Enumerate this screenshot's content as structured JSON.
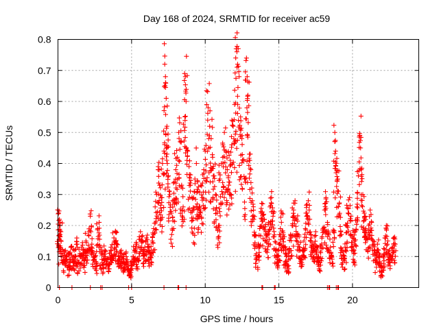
{
  "chart_data": {
    "type": "scatter",
    "title": "Day 168 of 2024, SRMTID for receiver ac59",
    "xlabel": "GPS time / hours",
    "ylabel": "SRMTID / TECUs",
    "xlim": [
      0,
      24.5
    ],
    "ylim": [
      0,
      0.8
    ],
    "xticks": [
      0,
      5,
      10,
      15,
      20
    ],
    "xtick_labels": [
      "0",
      "5",
      "10",
      "15",
      "20"
    ],
    "yticks": [
      0,
      0.1,
      0.2,
      0.3,
      0.4,
      0.5,
      0.6,
      0.7,
      0.8
    ],
    "ytick_labels": [
      "0",
      "0.1",
      "0.2",
      "0.3",
      "0.4",
      "0.5",
      "0.6",
      "0.7",
      "0.8"
    ],
    "grid": true,
    "marker": "+",
    "color": "#ff0000",
    "series": [
      {
        "name": "SRMTID",
        "points": [
          [
            0.05,
            0.24
          ],
          [
            0.1,
            0.22
          ],
          [
            0.15,
            0.2
          ],
          [
            0.2,
            0.18
          ],
          [
            0.1,
            0.13
          ],
          [
            0.3,
            0.11
          ],
          [
            0.4,
            0.09
          ],
          [
            0.5,
            0.12
          ],
          [
            0.6,
            0.1
          ],
          [
            0.7,
            0.07
          ],
          [
            0.8,
            0.11
          ],
          [
            0.9,
            0.13
          ],
          [
            1.0,
            0.09
          ],
          [
            1.1,
            0.12
          ],
          [
            1.2,
            0.1
          ],
          [
            1.3,
            0.14
          ],
          [
            1.4,
            0.08
          ],
          [
            1.5,
            0.11
          ],
          [
            1.6,
            0.13
          ],
          [
            1.7,
            0.12
          ],
          [
            1.8,
            0.09
          ],
          [
            1.9,
            0.15
          ],
          [
            2.0,
            0.12
          ],
          [
            2.1,
            0.18
          ],
          [
            2.2,
            0.23
          ],
          [
            2.3,
            0.14
          ],
          [
            2.4,
            0.11
          ],
          [
            2.5,
            0.1
          ],
          [
            2.6,
            0.08
          ],
          [
            2.7,
            0.19
          ],
          [
            2.8,
            0.21
          ],
          [
            2.9,
            0.13
          ],
          [
            3.0,
            0.08
          ],
          [
            3.1,
            0.1
          ],
          [
            3.2,
            0.12
          ],
          [
            3.3,
            0.09
          ],
          [
            3.4,
            0.07
          ],
          [
            3.5,
            0.11
          ],
          [
            3.6,
            0.13
          ],
          [
            3.7,
            0.1
          ],
          [
            3.8,
            0.16
          ],
          [
            3.9,
            0.18
          ],
          [
            4.0,
            0.14
          ],
          [
            4.1,
            0.1
          ],
          [
            4.2,
            0.09
          ],
          [
            4.3,
            0.12
          ],
          [
            4.4,
            0.1
          ],
          [
            4.5,
            0.08
          ],
          [
            4.6,
            0.11
          ],
          [
            4.7,
            0.09
          ],
          [
            4.8,
            0.06
          ],
          [
            4.9,
            0.04
          ],
          [
            5.0,
            0.07
          ],
          [
            5.1,
            0.1
          ],
          [
            5.2,
            0.12
          ],
          [
            5.3,
            0.14
          ],
          [
            5.4,
            0.09
          ],
          [
            5.5,
            0.13
          ],
          [
            5.6,
            0.18
          ],
          [
            5.7,
            0.15
          ],
          [
            5.8,
            0.11
          ],
          [
            5.9,
            0.13
          ],
          [
            6.0,
            0.16
          ],
          [
            6.1,
            0.14
          ],
          [
            6.2,
            0.12
          ],
          [
            6.3,
            0.1
          ],
          [
            6.4,
            0.15
          ],
          [
            6.5,
            0.19
          ],
          [
            6.6,
            0.26
          ],
          [
            6.7,
            0.3
          ],
          [
            6.8,
            0.38
          ],
          [
            6.9,
            0.33
          ],
          [
            7.0,
            0.29
          ],
          [
            7.1,
            0.4
          ],
          [
            7.2,
            0.44
          ],
          [
            7.25,
            0.72
          ],
          [
            7.3,
            0.68
          ],
          [
            7.35,
            0.61
          ],
          [
            7.4,
            0.52
          ],
          [
            7.5,
            0.36
          ],
          [
            7.6,
            0.3
          ],
          [
            7.7,
            0.24
          ],
          [
            7.8,
            0.28
          ],
          [
            7.9,
            0.34
          ],
          [
            8.0,
            0.38
          ],
          [
            8.1,
            0.42
          ],
          [
            8.2,
            0.5
          ],
          [
            8.3,
            0.47
          ],
          [
            8.4,
            0.33
          ],
          [
            8.5,
            0.26
          ],
          [
            8.6,
            0.69
          ],
          [
            8.65,
            0.68
          ],
          [
            8.7,
            0.6
          ],
          [
            8.8,
            0.44
          ],
          [
            8.9,
            0.39
          ],
          [
            9.0,
            0.33
          ],
          [
            9.1,
            0.29
          ],
          [
            9.2,
            0.25
          ],
          [
            9.3,
            0.35
          ],
          [
            9.4,
            0.4
          ],
          [
            9.5,
            0.31
          ],
          [
            9.6,
            0.26
          ],
          [
            9.7,
            0.33
          ],
          [
            9.8,
            0.29
          ],
          [
            9.9,
            0.38
          ],
          [
            10.0,
            0.44
          ],
          [
            10.1,
            0.59
          ],
          [
            10.2,
            0.58
          ],
          [
            10.3,
            0.52
          ],
          [
            10.4,
            0.48
          ],
          [
            10.5,
            0.42
          ],
          [
            10.6,
            0.36
          ],
          [
            10.7,
            0.3
          ],
          [
            10.8,
            0.24
          ],
          [
            10.9,
            0.2
          ],
          [
            11.0,
            0.35
          ],
          [
            11.1,
            0.4
          ],
          [
            11.2,
            0.46
          ],
          [
            11.3,
            0.5
          ],
          [
            11.4,
            0.44
          ],
          [
            11.5,
            0.38
          ],
          [
            11.6,
            0.33
          ],
          [
            11.7,
            0.41
          ],
          [
            11.8,
            0.46
          ],
          [
            11.9,
            0.52
          ],
          [
            12.0,
            0.59
          ],
          [
            12.1,
            0.77
          ],
          [
            12.15,
            0.76
          ],
          [
            12.2,
            0.72
          ],
          [
            12.3,
            0.68
          ],
          [
            12.4,
            0.55
          ],
          [
            12.5,
            0.49
          ],
          [
            12.6,
            0.41
          ],
          [
            12.7,
            0.35
          ],
          [
            12.8,
            0.74
          ],
          [
            12.85,
            0.68
          ],
          [
            12.9,
            0.62
          ],
          [
            13.0,
            0.43
          ],
          [
            13.1,
            0.38
          ],
          [
            13.2,
            0.28
          ],
          [
            13.3,
            0.22
          ],
          [
            13.4,
            0.17
          ],
          [
            13.5,
            0.09
          ],
          [
            13.6,
            0.14
          ],
          [
            13.7,
            0.19
          ],
          [
            13.8,
            0.24
          ],
          [
            13.9,
            0.27
          ],
          [
            14.0,
            0.22
          ],
          [
            14.1,
            0.18
          ],
          [
            14.2,
            0.15
          ],
          [
            14.3,
            0.21
          ],
          [
            14.4,
            0.26
          ],
          [
            14.5,
            0.29
          ],
          [
            14.6,
            0.23
          ],
          [
            14.7,
            0.17
          ],
          [
            14.8,
            0.12
          ],
          [
            14.9,
            0.1
          ],
          [
            15.0,
            0.14
          ],
          [
            15.1,
            0.19
          ],
          [
            15.2,
            0.24
          ],
          [
            15.3,
            0.17
          ],
          [
            15.4,
            0.13
          ],
          [
            15.5,
            0.1
          ],
          [
            15.6,
            0.07
          ],
          [
            15.7,
            0.12
          ],
          [
            15.8,
            0.16
          ],
          [
            15.9,
            0.2
          ],
          [
            16.0,
            0.25
          ],
          [
            16.1,
            0.28
          ],
          [
            16.2,
            0.22
          ],
          [
            16.3,
            0.17
          ],
          [
            16.4,
            0.13
          ],
          [
            16.5,
            0.09
          ],
          [
            16.6,
            0.12
          ],
          [
            16.7,
            0.15
          ],
          [
            16.8,
            0.19
          ],
          [
            16.9,
            0.24
          ],
          [
            17.0,
            0.28
          ],
          [
            17.1,
            0.22
          ],
          [
            17.2,
            0.16
          ],
          [
            17.3,
            0.12
          ],
          [
            17.4,
            0.14
          ],
          [
            17.5,
            0.18
          ],
          [
            17.6,
            0.13
          ],
          [
            17.7,
            0.1
          ],
          [
            17.8,
            0.08
          ],
          [
            17.9,
            0.14
          ],
          [
            18.0,
            0.19
          ],
          [
            18.1,
            0.25
          ],
          [
            18.2,
            0.29
          ],
          [
            18.3,
            0.21
          ],
          [
            18.4,
            0.17
          ],
          [
            18.5,
            0.13
          ],
          [
            18.6,
            0.1
          ],
          [
            18.7,
            0.18
          ],
          [
            18.8,
            0.5
          ],
          [
            18.85,
            0.44
          ],
          [
            18.9,
            0.4
          ],
          [
            19.0,
            0.35
          ],
          [
            19.1,
            0.27
          ],
          [
            19.2,
            0.18
          ],
          [
            19.3,
            0.12
          ],
          [
            19.4,
            0.09
          ],
          [
            19.5,
            0.13
          ],
          [
            19.6,
            0.2
          ],
          [
            19.7,
            0.24
          ],
          [
            19.8,
            0.29
          ],
          [
            19.9,
            0.23
          ],
          [
            20.0,
            0.16
          ],
          [
            20.1,
            0.12
          ],
          [
            20.2,
            0.18
          ],
          [
            20.3,
            0.26
          ],
          [
            20.4,
            0.36
          ],
          [
            20.5,
            0.49
          ],
          [
            20.55,
            0.45
          ],
          [
            20.6,
            0.38
          ],
          [
            20.7,
            0.3
          ],
          [
            20.8,
            0.24
          ],
          [
            20.9,
            0.19
          ],
          [
            21.0,
            0.16
          ],
          [
            21.1,
            0.2
          ],
          [
            21.2,
            0.25
          ],
          [
            21.3,
            0.21
          ],
          [
            21.4,
            0.15
          ],
          [
            21.5,
            0.12
          ],
          [
            21.6,
            0.09
          ],
          [
            21.7,
            0.14
          ],
          [
            21.8,
            0.11
          ],
          [
            21.9,
            0.07
          ],
          [
            22.0,
            0.05
          ],
          [
            22.1,
            0.1
          ],
          [
            22.2,
            0.16
          ],
          [
            22.3,
            0.2
          ],
          [
            22.4,
            0.15
          ],
          [
            22.5,
            0.12
          ],
          [
            22.6,
            0.1
          ],
          [
            22.7,
            0.13
          ],
          [
            22.8,
            0.16
          ],
          [
            22.9,
            0.14
          ]
        ]
      }
    ],
    "zero_points_x": [
      0.1,
      0.95,
      2.2,
      2.9,
      3.0,
      4.8,
      5.0,
      7.2,
      8.15,
      8.2,
      8.7,
      13.85,
      13.9,
      14.7,
      14.75,
      18.3,
      18.4,
      18.45,
      18.9,
      19.0,
      19.05
    ]
  }
}
